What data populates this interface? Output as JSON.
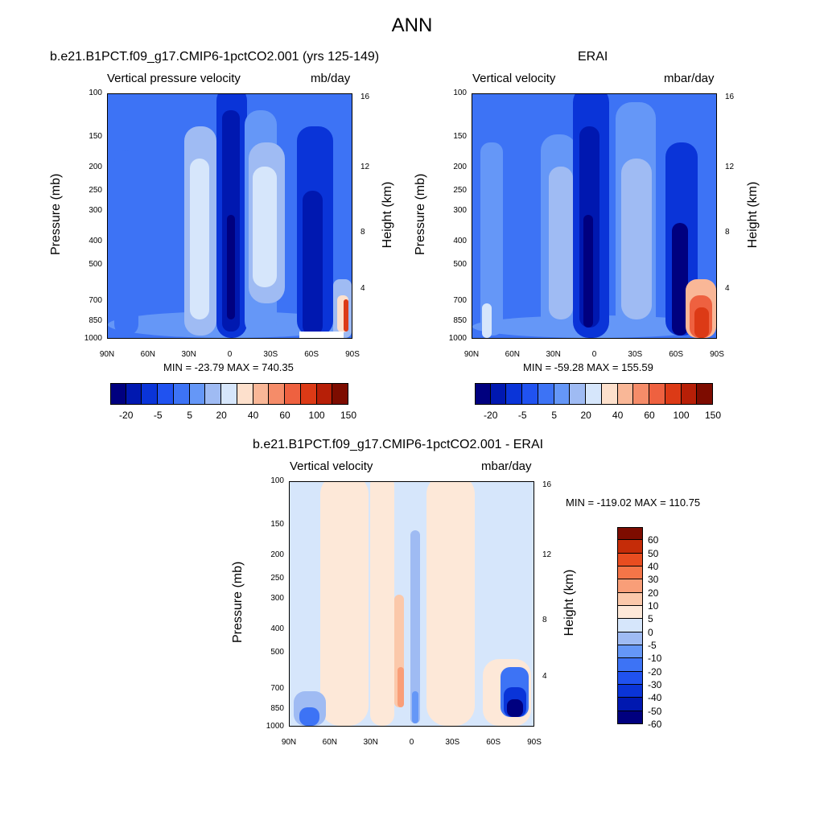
{
  "title": "ANN",
  "palette_main": [
    "#00007f",
    "#0018b0",
    "#0a34d8",
    "#2052f0",
    "#3d73f5",
    "#6597f7",
    "#9fbbf3",
    "#d6e6fb",
    "#fde0cc",
    "#f9b797",
    "#f58c69",
    "#ee6140",
    "#dc3a16",
    "#b71f07",
    "#7d0c00"
  ],
  "palette_diff": [
    "#00007f",
    "#0018b0",
    "#0a34d8",
    "#2052f0",
    "#3d73f5",
    "#6597f7",
    "#9fbbf3",
    "#d6e6fb",
    "#fde8d8",
    "#fbc8aa",
    "#f99e78",
    "#f47548",
    "#e84d20",
    "#c52c08",
    "#7d0c00"
  ],
  "panel1": {
    "title": "b.e21.B1PCT.f09_g17.CMIP6-1pctCO2.001 (yrs 125-149)",
    "left_label": "Vertical pressure velocity",
    "right_label": "mb/day",
    "minmax": "MIN = -23.79  MAX = 740.35"
  },
  "panel2": {
    "title": "ERAI",
    "left_label": "Vertical velocity",
    "right_label": "mbar/day",
    "minmax": "MIN = -59.28  MAX = 155.59"
  },
  "panel3": {
    "title": "b.e21.B1PCT.f09_g17.CMIP6-1pctCO2.001 - ERAI",
    "left_label": "Vertical velocity",
    "right_label": "mbar/day",
    "minmax": "MIN = -119.02  MAX = 110.75"
  },
  "axes": {
    "ylabel": "Pressure (mb)",
    "y2label": "Height (km)",
    "pressure_ticks": [
      "100",
      "150",
      "200",
      "250",
      "300",
      "400",
      "500",
      "700",
      "850",
      "1000"
    ],
    "height_ticks": [
      "16",
      "12",
      "8",
      "4"
    ],
    "lat_ticks": [
      "90N",
      "60N",
      "30N",
      "0",
      "30S",
      "60S",
      "90S"
    ]
  },
  "colorbar_main_labels": [
    "-20",
    "-5",
    "5",
    "20",
    "40",
    "60",
    "100",
    "150"
  ],
  "colorbar_diff_labels": [
    "60",
    "50",
    "40",
    "30",
    "20",
    "10",
    "5",
    "0",
    "-5",
    "-10",
    "-20",
    "-30",
    "-40",
    "-50",
    "-60"
  ],
  "chart_data": [
    {
      "type": "heatmap",
      "title": "b.e21.B1PCT.f09_g17.CMIP6-1pctCO2.001 (yrs 125-149)",
      "variable": "Vertical pressure velocity",
      "units": "mb/day",
      "xlabel": "",
      "ylabel": "Pressure (mb)",
      "y2label": "Height (km)",
      "x_ticks": [
        "90N",
        "60N",
        "30N",
        "0",
        "30S",
        "60S",
        "90S"
      ],
      "y_ticks": [
        100,
        150,
        200,
        250,
        300,
        400,
        500,
        700,
        850,
        1000
      ],
      "y_scale": "log",
      "min": -23.79,
      "max": 740.35,
      "colorbar_labels": [
        -20,
        -5,
        5,
        20,
        40,
        60,
        100,
        150
      ],
      "ascent_cores_lat": [
        8,
        -62
      ],
      "descent_cores_lat": [
        -25,
        22,
        35
      ]
    },
    {
      "type": "heatmap",
      "title": "ERAI",
      "variable": "Vertical velocity",
      "units": "mbar/day",
      "xlabel": "",
      "ylabel": "Pressure (mb)",
      "y2label": "Height (km)",
      "x_ticks": [
        "90N",
        "60N",
        "30N",
        "0",
        "30S",
        "60S",
        "90S"
      ],
      "y_ticks": [
        100,
        150,
        200,
        250,
        300,
        400,
        500,
        700,
        850,
        1000
      ],
      "y_scale": "log",
      "min": -59.28,
      "max": 155.59,
      "colorbar_labels": [
        -20,
        -5,
        5,
        20,
        40,
        60,
        100,
        150
      ],
      "ascent_cores_lat": [
        8,
        -62
      ],
      "descent_cores_lat": [
        -25,
        22
      ]
    },
    {
      "type": "heatmap",
      "title": "b.e21.B1PCT.f09_g17.CMIP6-1pctCO2.001 - ERAI",
      "variable": "Vertical velocity",
      "units": "mbar/day",
      "xlabel": "",
      "ylabel": "Pressure (mb)",
      "y2label": "Height (km)",
      "x_ticks": [
        "90N",
        "60N",
        "30N",
        "0",
        "30S",
        "60S",
        "90S"
      ],
      "y_ticks": [
        100,
        150,
        200,
        250,
        300,
        400,
        500,
        700,
        850,
        1000
      ],
      "y_scale": "log",
      "min": -119.02,
      "max": 110.75,
      "colorbar_labels": [
        60,
        50,
        40,
        30,
        20,
        10,
        5,
        0,
        -5,
        -10,
        -20,
        -30,
        -40,
        -50,
        -60
      ]
    }
  ]
}
